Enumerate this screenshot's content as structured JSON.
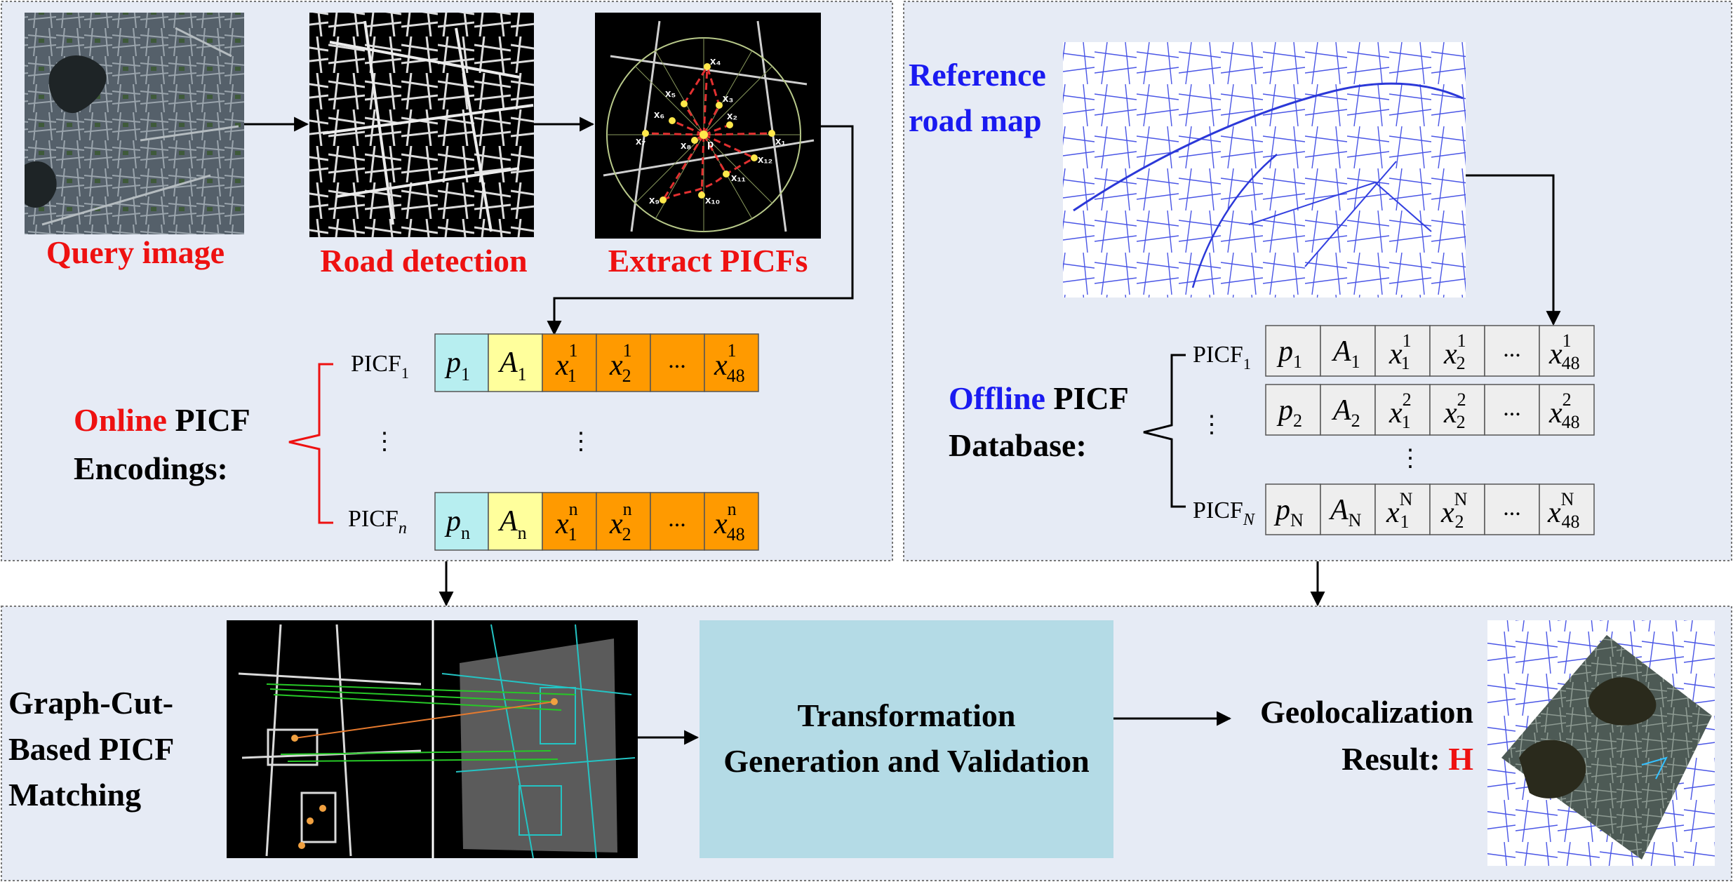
{
  "labels": {
    "query_image": "Query image",
    "road_detection": "Road detection",
    "extract_picfs": "Extract PICFs",
    "reference_line1": "Reference",
    "reference_line2": "road map",
    "online_word": "Online",
    "online_picf": " PICF",
    "online_line2": "Encodings:",
    "offline_word": "Offline",
    "offline_picf": " PICF",
    "offline_line2": "Database:",
    "matching_line1": "Graph-Cut-",
    "matching_line2": "Based PICF",
    "matching_line3": "Matching",
    "transform_line1": "Transformation",
    "transform_line2": "Generation and Validation",
    "result_line1": "Geolocalization",
    "result_line2": "Result: ",
    "result_h": "H"
  },
  "online": {
    "rows": [
      {
        "label": "PICF",
        "label_sub": "1",
        "p_sub": "1",
        "a_sub": "1",
        "x_sup": "1"
      },
      {
        "label": "PICF",
        "label_sub": "n",
        "p_sub": "n",
        "a_sub": "n",
        "x_sup": "n"
      }
    ]
  },
  "offline": {
    "rows": [
      {
        "label": "PICF",
        "label_sub": "1",
        "p_sub": "1",
        "a_sub": "1",
        "x_sup": "1"
      },
      {
        "label": "",
        "label_sub": "",
        "p_sub": "2",
        "a_sub": "2",
        "x_sup": "2"
      },
      {
        "label": "PICF",
        "label_sub": "N",
        "p_sub": "N",
        "a_sub": "N",
        "x_sup": "N"
      }
    ]
  },
  "cells": {
    "p": "p",
    "a": "A",
    "x": "x",
    "x1_sub": "1",
    "x2_sub": "2",
    "x48_sub": "48",
    "ellipsis": "..."
  },
  "vdots": "⋮",
  "picf_points": [
    "x₁",
    "x₂",
    "x₃",
    "x₄",
    "x₅",
    "x₆",
    "x₇",
    "x₈",
    "x₉",
    "x₁₀",
    "x₁₁",
    "x₁₂",
    "p"
  ],
  "colors": {
    "panel_bg": "#e6ebf5",
    "cyan_cell": "#b7eef0",
    "yellow_cell": "#ffff9c",
    "orange_cell": "#ff9a00",
    "gray_cell": "#eeeeee",
    "transform_box": "#b4dbe6",
    "red": "#ee1111",
    "blue": "#1a1af0"
  }
}
